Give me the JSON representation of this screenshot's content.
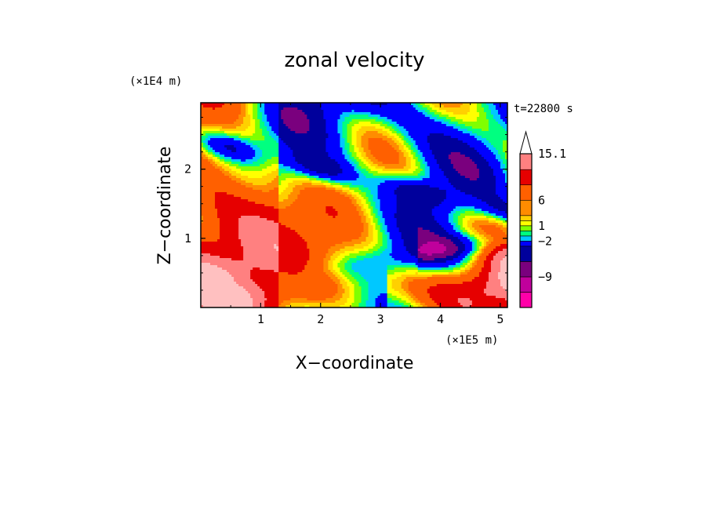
{
  "chart_data": {
    "type": "heatmap",
    "title": "zonal velocity",
    "xlabel": "X−coordinate",
    "ylabel": "Z−coordinate",
    "x_unit": "(×1E5 m)",
    "y_unit": "(×1E4 m)",
    "time_label": "t=22800 s",
    "x_range": [
      0,
      5.12
    ],
    "y_range": [
      0,
      2.96
    ],
    "x_ticks": [
      "1",
      "2",
      "3",
      "4",
      "5"
    ],
    "y_ticks": [
      "1",
      "2"
    ],
    "colorbar": {
      "labels": [
        "15.1",
        "6",
        "1",
        "−2",
        "−9"
      ],
      "levels": [
        -15,
        -12,
        -9,
        -6,
        -3,
        -2,
        -1,
        0,
        1,
        2,
        3,
        6,
        9,
        12,
        15.1
      ],
      "colors": [
        "#ff00a8",
        "#c0009c",
        "#7a007e",
        "#00009c",
        "#0000ff",
        "#00c8ff",
        "#00ff80",
        "#80ff00",
        "#ffff00",
        "#ffd000",
        "#ff8c00",
        "#ff6000",
        "#e60000",
        "#ff8080",
        "#ffc0c0"
      ],
      "extend_top": true
    },
    "field_description_hidden": false
  }
}
